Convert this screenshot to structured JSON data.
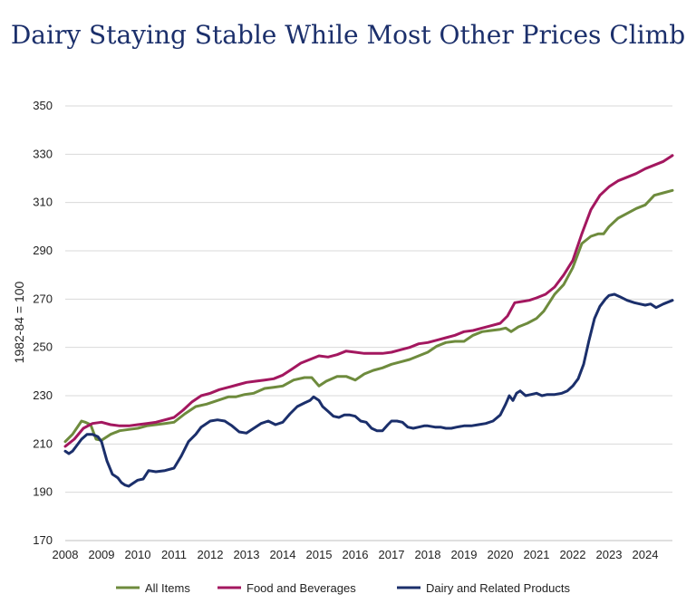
{
  "chart_data": {
    "type": "line",
    "title": "Dairy Staying Stable While Most Other Prices Climb",
    "ylabel": "1982-84 = 100",
    "xlabel": "",
    "ylim": [
      170,
      350
    ],
    "xlim": [
      2008,
      2024.75
    ],
    "yticks": [
      170,
      190,
      210,
      230,
      250,
      270,
      290,
      310,
      330,
      350
    ],
    "xticks": [
      "2008",
      "2009",
      "2010",
      "2011",
      "2012",
      "2013",
      "2014",
      "2015",
      "2016",
      "2017",
      "2018",
      "2019",
      "2020",
      "2021",
      "2022",
      "2023",
      "2024"
    ],
    "grid": "horizontal",
    "legend": "bottom",
    "series": [
      {
        "name": "All Items",
        "color": "#6e8b3d",
        "x": [
          2008.0,
          2008.2,
          2008.45,
          2008.55,
          2008.7,
          2008.85,
          2009.0,
          2009.25,
          2009.5,
          2009.75,
          2010.0,
          2010.25,
          2010.5,
          2010.75,
          2011.0,
          2011.3,
          2011.6,
          2011.9,
          2012.2,
          2012.5,
          2012.7,
          2012.95,
          2013.2,
          2013.5,
          2013.75,
          2014.0,
          2014.3,
          2014.6,
          2014.8,
          2015.0,
          2015.2,
          2015.5,
          2015.75,
          2016.0,
          2016.25,
          2016.5,
          2016.75,
          2017.0,
          2017.25,
          2017.5,
          2017.75,
          2018.0,
          2018.25,
          2018.5,
          2018.75,
          2019.0,
          2019.25,
          2019.5,
          2019.75,
          2020.0,
          2020.15,
          2020.3,
          2020.5,
          2020.75,
          2021.0,
          2021.2,
          2021.5,
          2021.75,
          2022.0,
          2022.25,
          2022.5,
          2022.7,
          2022.85,
          2023.0,
          2023.25,
          2023.5,
          2023.75,
          2024.0,
          2024.25,
          2024.5,
          2024.75
        ],
        "values": [
          211,
          214,
          219.5,
          219,
          218,
          212,
          211.5,
          214,
          215.5,
          216,
          216.5,
          217.5,
          218,
          218.5,
          219,
          222.5,
          225.5,
          226.5,
          228,
          229.5,
          229.5,
          230.5,
          231,
          233,
          233.5,
          234,
          236.5,
          237.5,
          237.5,
          234,
          236,
          238,
          238,
          236.5,
          239,
          240.5,
          241.5,
          243,
          244,
          245,
          246.5,
          248,
          250.5,
          252,
          252.5,
          252.5,
          255,
          256.5,
          257,
          257.5,
          258,
          256.5,
          258.5,
          260,
          262,
          265,
          272,
          276,
          283,
          293,
          296,
          297,
          297,
          300,
          303.5,
          305.5,
          307.5,
          309,
          313,
          314,
          315
        ]
      },
      {
        "name": "Food and Beverages",
        "color": "#a3175f",
        "x": [
          2008.0,
          2008.25,
          2008.5,
          2008.75,
          2009.0,
          2009.25,
          2009.5,
          2009.75,
          2010.0,
          2010.25,
          2010.5,
          2010.75,
          2011.0,
          2011.25,
          2011.5,
          2011.75,
          2012.0,
          2012.25,
          2012.5,
          2012.75,
          2013.0,
          2013.25,
          2013.5,
          2013.75,
          2014.0,
          2014.25,
          2014.5,
          2014.75,
          2015.0,
          2015.25,
          2015.5,
          2015.75,
          2016.0,
          2016.25,
          2016.5,
          2016.75,
          2017.0,
          2017.25,
          2017.5,
          2017.75,
          2018.0,
          2018.25,
          2018.5,
          2018.75,
          2019.0,
          2019.25,
          2019.5,
          2019.75,
          2020.0,
          2020.2,
          2020.4,
          2020.6,
          2020.8,
          2021.0,
          2021.25,
          2021.5,
          2021.75,
          2022.0,
          2022.25,
          2022.5,
          2022.75,
          2023.0,
          2023.25,
          2023.5,
          2023.75,
          2024.0,
          2024.25,
          2024.5,
          2024.75
        ],
        "values": [
          209,
          212,
          216.5,
          218.5,
          219,
          218,
          217.5,
          217.5,
          218,
          218.5,
          219,
          220,
          221,
          224,
          227.5,
          230,
          231,
          232.5,
          233.5,
          234.5,
          235.5,
          236,
          236.5,
          237,
          238.5,
          241,
          243.5,
          245,
          246.5,
          246,
          247,
          248.5,
          248,
          247.5,
          247.5,
          247.5,
          248,
          249,
          250,
          251.5,
          252,
          253,
          254,
          255,
          256.5,
          257,
          258,
          259,
          260,
          263,
          268.5,
          269,
          269.5,
          270.5,
          272,
          275,
          280,
          286,
          297,
          307,
          313,
          316.5,
          319,
          320.5,
          322,
          324,
          325.5,
          327,
          329.5
        ]
      },
      {
        "name": "Dairy and Related Products",
        "color": "#1b2f6b",
        "x": [
          2008.0,
          2008.1,
          2008.2,
          2008.3,
          2008.45,
          2008.6,
          2008.75,
          2008.9,
          2009.0,
          2009.15,
          2009.3,
          2009.45,
          2009.55,
          2009.65,
          2009.75,
          2009.85,
          2010.0,
          2010.15,
          2010.3,
          2010.5,
          2010.75,
          2011.0,
          2011.2,
          2011.4,
          2011.6,
          2011.75,
          2012.0,
          2012.2,
          2012.4,
          2012.6,
          2012.8,
          2013.0,
          2013.2,
          2013.4,
          2013.6,
          2013.8,
          2014.0,
          2014.2,
          2014.4,
          2014.6,
          2014.75,
          2014.85,
          2015.0,
          2015.1,
          2015.25,
          2015.4,
          2015.55,
          2015.7,
          2015.85,
          2016.0,
          2016.15,
          2016.3,
          2016.45,
          2016.6,
          2016.75,
          2016.9,
          2017.0,
          2017.15,
          2017.3,
          2017.45,
          2017.6,
          2017.75,
          2017.9,
          2018.0,
          2018.2,
          2018.35,
          2018.5,
          2018.65,
          2018.8,
          2019.0,
          2019.2,
          2019.4,
          2019.6,
          2019.8,
          2020.0,
          2020.15,
          2020.25,
          2020.35,
          2020.45,
          2020.55,
          2020.7,
          2020.85,
          2021.0,
          2021.15,
          2021.3,
          2021.5,
          2021.7,
          2021.85,
          2022.0,
          2022.15,
          2022.3,
          2022.45,
          2022.6,
          2022.75,
          2022.9,
          2023.0,
          2023.15,
          2023.3,
          2023.5,
          2023.7,
          2023.85,
          2024.0,
          2024.15,
          2024.3,
          2024.5,
          2024.75
        ],
        "values": [
          207,
          206,
          207,
          209,
          212,
          214,
          214,
          213,
          211,
          203,
          197.5,
          196,
          194,
          193,
          192.5,
          193.5,
          195,
          195.5,
          199,
          198.5,
          199,
          200,
          205,
          211,
          214,
          217,
          219.5,
          220,
          219.5,
          217.5,
          215,
          214.5,
          216.5,
          218.5,
          219.5,
          218,
          219,
          222.5,
          225.5,
          227,
          228,
          229.5,
          228,
          225.5,
          223.5,
          221.5,
          221,
          222,
          222,
          221.5,
          219.5,
          219,
          216.5,
          215.5,
          215.5,
          218,
          219.5,
          219.5,
          219,
          217,
          216.5,
          217,
          217.5,
          217.5,
          217,
          217,
          216.5,
          216.5,
          217,
          217.5,
          217.5,
          218,
          218.5,
          219.5,
          222,
          226.5,
          230,
          228,
          231,
          232,
          230,
          230.5,
          231,
          230,
          230.5,
          230.5,
          231,
          232,
          234,
          237,
          243,
          253,
          262,
          267,
          270,
          271.5,
          272,
          271,
          269.5,
          268.5,
          268,
          267.5,
          268,
          266.5,
          268,
          269.5
        ]
      }
    ]
  }
}
